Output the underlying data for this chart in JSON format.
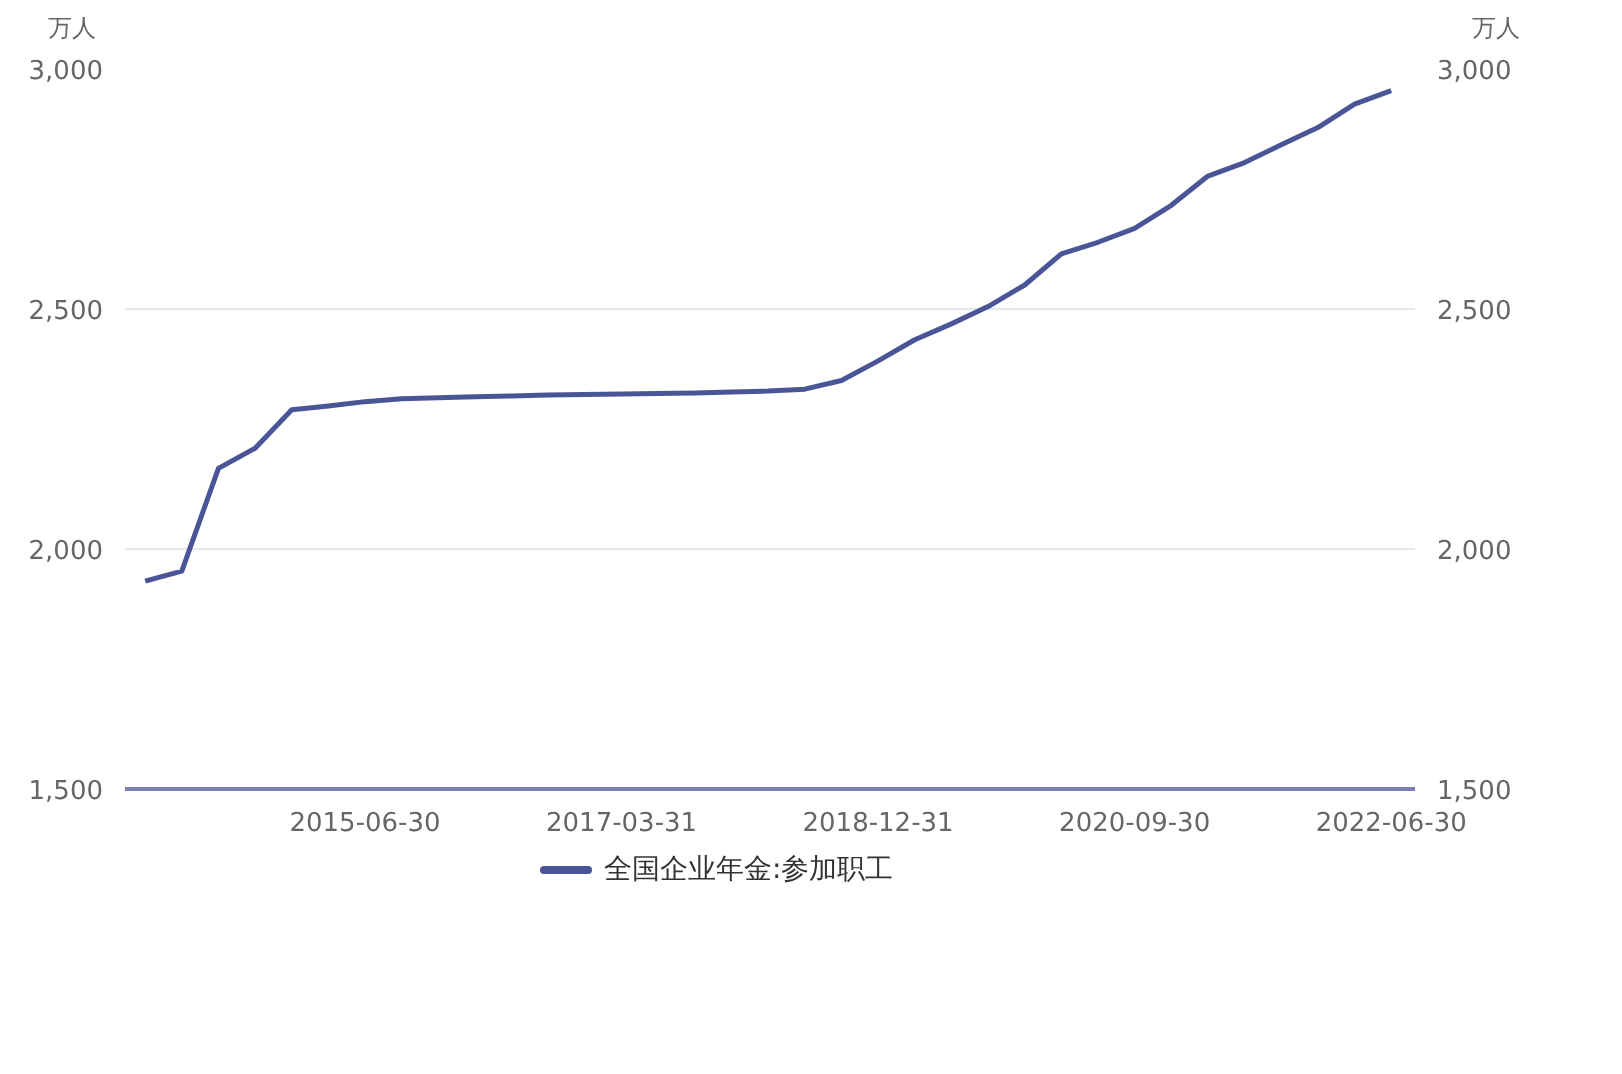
{
  "chart_data": {
    "type": "line",
    "ylabel": "万人",
    "y2label": "万人",
    "categories": [
      null,
      null,
      null,
      null,
      null,
      null,
      "2015-06-30",
      null,
      null,
      null,
      null,
      null,
      null,
      "2017-03-31",
      null,
      null,
      null,
      null,
      null,
      null,
      "2018-12-31",
      null,
      null,
      null,
      null,
      null,
      null,
      "2020-09-30",
      null,
      null,
      null,
      null,
      null,
      null,
      "2022-06-30"
    ],
    "series": [
      {
        "name": "全国企业年金:参加职工",
        "color": "#4a5598",
        "values": [
          1933,
          1954,
          2168,
          2210,
          2290,
          2298,
          2307,
          2313,
          2315,
          2317,
          2319,
          2321,
          2322,
          2323,
          2324,
          2325,
          2327,
          2329,
          2333,
          2351,
          2392,
          2436,
          2469,
          2505,
          2550,
          2615,
          2639,
          2668,
          2716,
          2777,
          2805,
          2842,
          2878,
          2927,
          2955
        ]
      }
    ],
    "ylim": [
      1500,
      3000
    ],
    "yticks": [
      {
        "value": 1500,
        "label": "1,500"
      },
      {
        "value": 2000,
        "label": "2,000"
      },
      {
        "value": 2500,
        "label": "2,500"
      },
      {
        "value": 3000,
        "label": "3,000"
      }
    ],
    "y2lim": [
      1500,
      3000
    ],
    "y2ticks": [
      {
        "value": 1500,
        "label": "1,500"
      },
      {
        "value": 2000,
        "label": "2,000"
      },
      {
        "value": 2500,
        "label": "2,500"
      },
      {
        "value": 3000,
        "label": "3,000"
      }
    ],
    "grid": "y",
    "legend": "bottom",
    "line_style": "solid"
  }
}
